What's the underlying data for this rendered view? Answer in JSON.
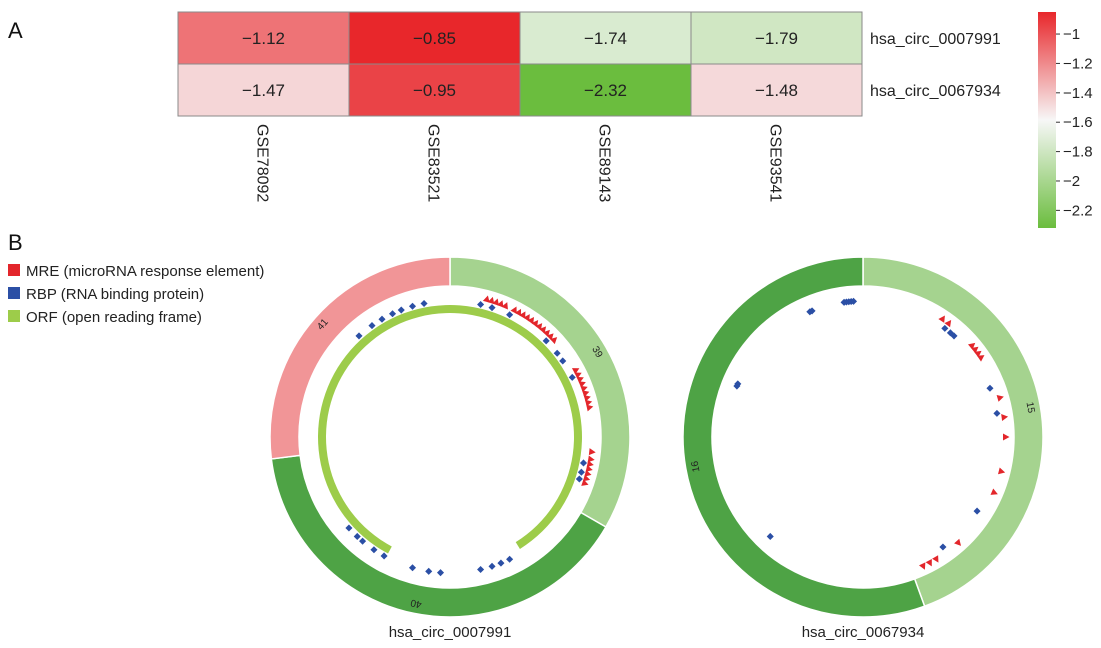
{
  "panel_a_label": "A",
  "panel_b_label": "B",
  "colors": {
    "red": "#e8272b",
    "white": "#f7f7f7",
    "green": "#6bbd3e",
    "grid": "#8a8a8a",
    "mre": "#e3262b",
    "rbp": "#2b4fa5",
    "orf": "#9dcc4a"
  },
  "chart_data": [
    {
      "type": "heatmap",
      "columns": [
        "GSE78092",
        "GSE83521",
        "GSE89143",
        "GSE93541"
      ],
      "rows": [
        "hsa_circ_0007991",
        "hsa_circ_0067934"
      ],
      "values": [
        [
          -1.12,
          -0.85,
          -1.74,
          -1.79
        ],
        [
          -1.47,
          -0.95,
          -2.32,
          -1.48
        ]
      ],
      "value_labels": [
        [
          "−1.12",
          "−0.85",
          "−1.74",
          "−1.79"
        ],
        [
          "−1.47",
          "−0.95",
          "−2.32",
          "−1.48"
        ]
      ],
      "colorbar": {
        "range": [
          -2.32,
          -0.85
        ],
        "ticks": [
          -1,
          -1.2,
          -1.4,
          -1.6,
          -1.8,
          -2,
          -2.2
        ],
        "tick_labels": [
          "−1",
          "−1.2",
          "−1.4",
          "−1.6",
          "−1.8",
          "−2",
          "−2.2"
        ]
      }
    },
    {
      "type": "circos",
      "legend": [
        {
          "key": "mre",
          "label": "MRE (microRNA response element)"
        },
        {
          "key": "rbp",
          "label": "RBP (RNA binding protein)"
        },
        {
          "key": "orf",
          "label": "ORF (open reading frame)"
        }
      ],
      "circles": [
        {
          "title": "hsa_circ_0007991",
          "segments": [
            {
              "label": "39",
              "start_deg": 0,
              "end_deg": 120,
              "color": "#a5d38f"
            },
            {
              "label": "40",
              "start_deg": 120,
              "end_deg": 263,
              "color": "#4ea345"
            },
            {
              "label": "41",
              "start_deg": 263,
              "end_deg": 360,
              "color": "#f19597"
            }
          ],
          "orf": {
            "start_deg": 208,
            "end_deg": 508
          },
          "mre_deg": [
            15,
            17,
            19,
            21,
            23,
            27,
            29,
            31,
            33,
            35,
            37,
            39,
            41,
            43,
            45,
            47,
            62,
            64,
            66,
            68,
            70,
            72,
            74,
            76,
            78,
            96,
            99,
            101,
            103,
            105,
            107,
            109
          ],
          "rbp_deg": [
            318,
            325,
            330,
            335,
            339,
            344,
            349,
            13,
            18,
            26,
            45,
            52,
            56,
            64,
            101,
            105,
            108,
            154,
            158,
            162,
            167,
            184,
            189,
            196,
            209,
            214,
            220,
            223,
            228
          ]
        },
        {
          "title": "hsa_circ_0067934",
          "segments": [
            {
              "label": "15",
              "start_deg": 0,
              "end_deg": 160,
              "color": "#a5d38f"
            },
            {
              "label": "16",
              "start_deg": 160,
              "end_deg": 360,
              "color": "#4ea345"
            }
          ],
          "mre_deg": [
            34,
            37,
            50,
            52,
            54,
            56,
            74,
            82,
            90,
            104,
            113,
            138,
            149,
            152,
            155
          ],
          "rbp_deg": [
            337,
            338,
            352,
            353,
            354,
            355,
            356,
            37,
            40,
            42,
            69,
            80,
            123,
            144,
            223,
            292,
            293
          ]
        }
      ]
    }
  ]
}
